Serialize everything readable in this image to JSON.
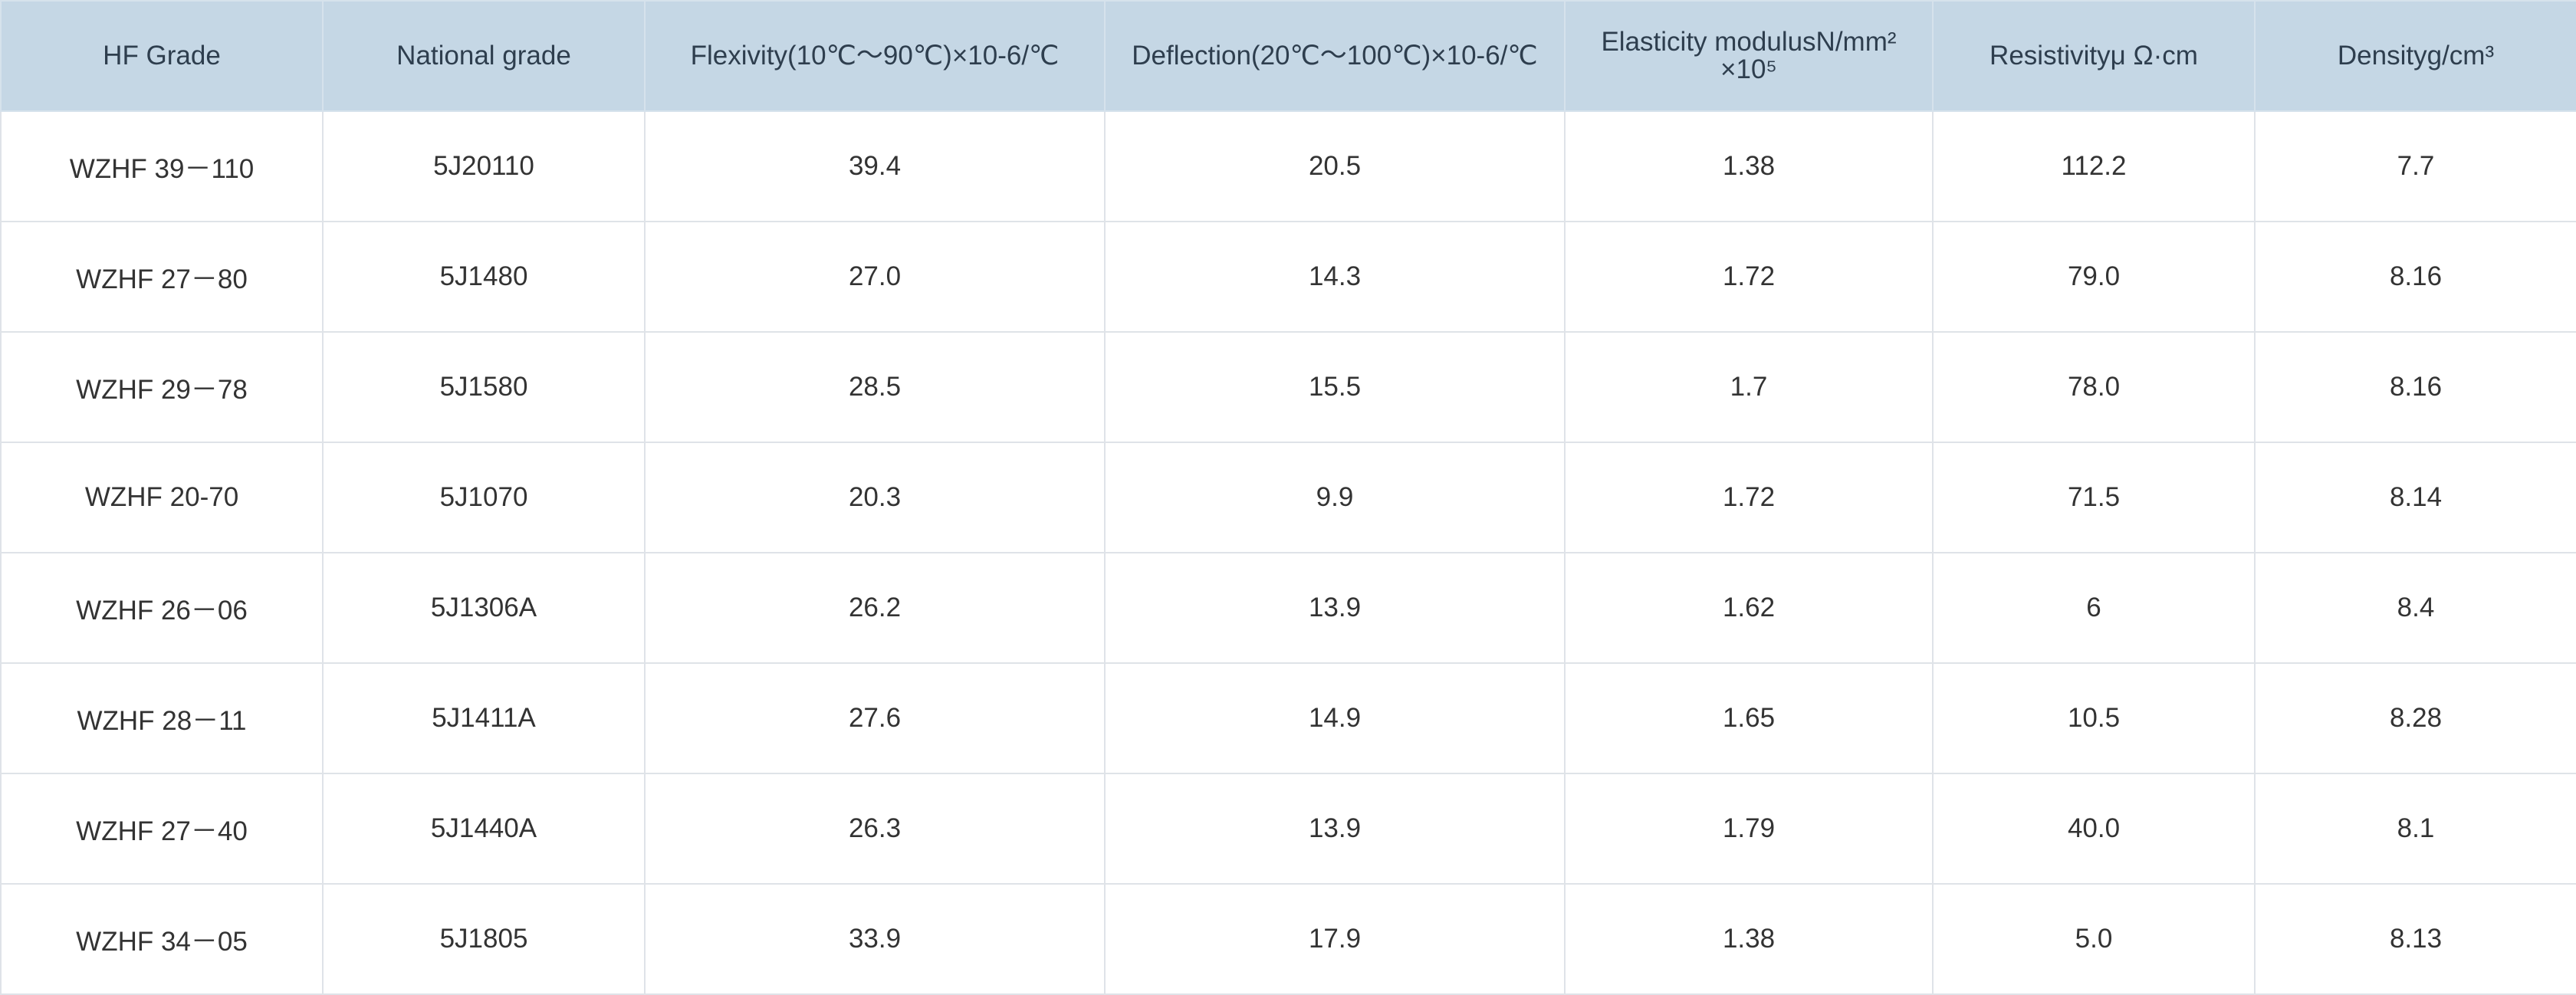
{
  "table": {
    "headers": [
      "HF Grade",
      "National grade",
      "Flexivity(10℃～90℃)×10-6/℃",
      "Deflection(20℃～100℃)×10-6/℃",
      "Elasticity modulusN/mm² ×10⁵",
      "Resistivityμ Ω·cm",
      "Densityg/cm³"
    ],
    "rows": [
      [
        "WZHF 39－110",
        "5J20110",
        "39.4",
        "20.5",
        "1.38",
        "112.2",
        "7.7"
      ],
      [
        "WZHF 27－80",
        "5J1480",
        "27.0",
        "14.3",
        "1.72",
        "79.0",
        "8.16"
      ],
      [
        "WZHF 29－78",
        "5J1580",
        "28.5",
        "15.5",
        "1.7",
        "78.0",
        "8.16"
      ],
      [
        "WZHF 20-70",
        "5J1070",
        "20.3",
        "9.9",
        "1.72",
        "71.5",
        "8.14"
      ],
      [
        "WZHF 26－06",
        "5J1306A",
        "26.2",
        "13.9",
        "1.62",
        "6",
        "8.4"
      ],
      [
        "WZHF 28－11",
        "5J1411A",
        "27.6",
        "14.9",
        "1.65",
        "10.5",
        "8.28"
      ],
      [
        "WZHF 27－40",
        "5J1440A",
        "26.3",
        "13.9",
        "1.79",
        "40.0",
        "8.1"
      ],
      [
        "WZHF 34－05",
        "5J1805",
        "33.9",
        "17.9",
        "1.38",
        "5.0",
        "8.13"
      ]
    ]
  },
  "colors": {
    "header_bg": "#c5d7e5",
    "text": "#333333",
    "border": "#dfe3e8"
  }
}
